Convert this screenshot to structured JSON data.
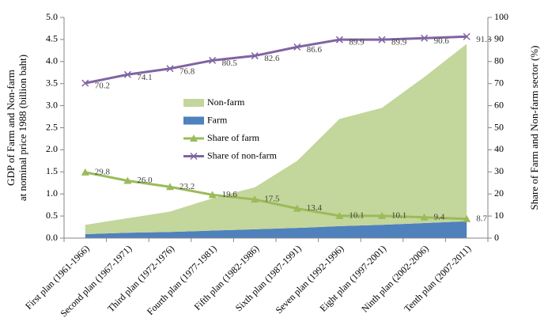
{
  "chart_data": {
    "type": "combo",
    "y_label": [
      "GDP of Farm and Non-farm",
      "at nominal price 1988 (billion baht)"
    ],
    "y2_label": "Share of Farm and Non-farm sector (%)",
    "categories": [
      "First plan (1961-1966)",
      "Second plan (1967-1971)",
      "Third plan (1972-1976)",
      "Fourth plan (1977-1981)",
      "Fifth plan (1982-1986)",
      "Sixth plan (1987-1991)",
      "Seven plan (1992-1996)",
      "Eight plan (1997-2001)",
      "Ninth plan (2002-2006)",
      "Tenth plan (2007-2011)"
    ],
    "stacked": true,
    "series": [
      {
        "name": "Non-farm",
        "type": "area",
        "color": "#c3d69b",
        "values": [
          0.21,
          0.33,
          0.46,
          0.73,
          0.95,
          1.52,
          2.43,
          2.65,
          3.31,
          4.02
        ]
      },
      {
        "name": "Farm",
        "type": "area",
        "color": "#4f81bd",
        "values": [
          0.09,
          0.12,
          0.14,
          0.17,
          0.2,
          0.23,
          0.27,
          0.3,
          0.34,
          0.38
        ]
      },
      {
        "name": "Share of farm",
        "type": "line",
        "marker": "triangle",
        "axis": "y2",
        "color": "#9bbb59",
        "values": [
          29.8,
          26,
          23.2,
          19.6,
          17.5,
          13.4,
          10.1,
          10.1,
          9.4,
          8.7
        ],
        "value_labels": [
          "29.8",
          "26.0",
          "23.2",
          "19.6",
          "17.5",
          "13.4",
          "10.1",
          "10.1",
          "9.4",
          "8.7"
        ]
      },
      {
        "name": "Share of non-farm",
        "type": "line",
        "marker": "x",
        "axis": "y2",
        "color": "#8064a2",
        "values": [
          70.2,
          74.1,
          76.8,
          80.5,
          82.6,
          86.6,
          89.9,
          89.9,
          90.6,
          91.3
        ],
        "value_labels": [
          "70.2",
          "74.1",
          "76.8",
          "80.5",
          "82.6",
          "86.6",
          "89.9",
          "89.9",
          "90.6",
          "91.3"
        ]
      }
    ],
    "ylim": [
      0,
      5
    ],
    "yticks": [
      {
        "value": 0,
        "label": "0.0"
      },
      {
        "value": 0.5,
        "label": "0.5"
      },
      {
        "value": 1,
        "label": "1.0"
      },
      {
        "value": 1.5,
        "label": "1.5"
      },
      {
        "value": 2,
        "label": "2.0"
      },
      {
        "value": 2.5,
        "label": "2.5"
      },
      {
        "value": 3,
        "label": "3.0"
      },
      {
        "value": 3.5,
        "label": "3.5"
      },
      {
        "value": 4,
        "label": "4.0"
      },
      {
        "value": 4.5,
        "label": "4.5"
      },
      {
        "value": 5,
        "label": "5.0"
      }
    ],
    "y2lim": [
      0,
      100
    ],
    "y2ticks": [
      0,
      10,
      20,
      30,
      40,
      50,
      60,
      70,
      80,
      90,
      100
    ],
    "grid": false
  }
}
